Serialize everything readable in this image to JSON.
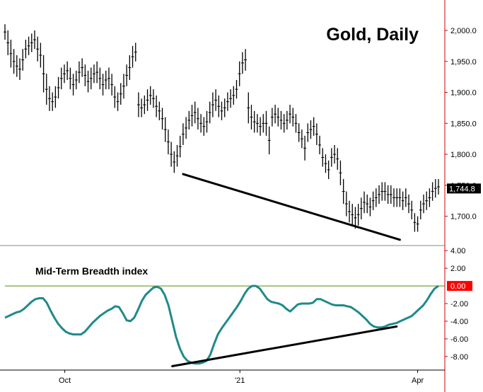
{
  "colors": {
    "background": "#ffffff",
    "bars": "#000000",
    "axis": "#cc0000",
    "breadth_line": "#1f8a8a",
    "zero_line": "#5a8a00",
    "trendline": "#000000",
    "price_tag_bg": "#000000",
    "zero_tag_bg": "#ff0000",
    "tick_text": "#000000"
  },
  "chart_data": [
    {
      "type": "ohlc",
      "title": "Gold, Daily",
      "ylim": [
        1655,
        2040
      ],
      "y_ticks": [
        "2,000.0",
        "1,950.0",
        "1,900.0",
        "1,850.0",
        "1,800.0",
        "1,750.0",
        "1,700.0"
      ],
      "y_tick_values": [
        2000,
        1950,
        1900,
        1850,
        1800,
        1750,
        1700
      ],
      "last_value": 1744.8,
      "last_value_label": "1,744.8",
      "bars": [
        [
          2010,
          1985
        ],
        [
          2000,
          1960
        ],
        [
          1985,
          1940
        ],
        [
          1970,
          1930
        ],
        [
          1960,
          1925
        ],
        [
          1955,
          1920
        ],
        [
          1970,
          1935
        ],
        [
          1985,
          1955
        ],
        [
          1990,
          1960
        ],
        [
          1995,
          1965
        ],
        [
          2000,
          1970
        ],
        [
          1990,
          1950
        ],
        [
          1980,
          1940
        ],
        [
          1960,
          1900
        ],
        [
          1930,
          1880
        ],
        [
          1910,
          1870
        ],
        [
          1900,
          1870
        ],
        [
          1910,
          1875
        ],
        [
          1925,
          1890
        ],
        [
          1940,
          1905
        ],
        [
          1945,
          1915
        ],
        [
          1950,
          1920
        ],
        [
          1940,
          1905
        ],
        [
          1930,
          1895
        ],
        [
          1935,
          1905
        ],
        [
          1950,
          1915
        ],
        [
          1955,
          1925
        ],
        [
          1945,
          1910
        ],
        [
          1935,
          1900
        ],
        [
          1940,
          1905
        ],
        [
          1945,
          1915
        ],
        [
          1950,
          1915
        ],
        [
          1940,
          1905
        ],
        [
          1930,
          1895
        ],
        [
          1935,
          1905
        ],
        [
          1940,
          1905
        ],
        [
          1930,
          1895
        ],
        [
          1910,
          1875
        ],
        [
          1900,
          1870
        ],
        [
          1915,
          1880
        ],
        [
          1930,
          1890
        ],
        [
          1945,
          1910
        ],
        [
          1960,
          1920
        ],
        [
          1975,
          1940
        ],
        [
          1980,
          1950
        ],
        [
          1900,
          1860
        ],
        [
          1890,
          1860
        ],
        [
          1895,
          1865
        ],
        [
          1905,
          1870
        ],
        [
          1910,
          1880
        ],
        [
          1905,
          1875
        ],
        [
          1895,
          1860
        ],
        [
          1885,
          1855
        ],
        [
          1875,
          1840
        ],
        [
          1860,
          1820
        ],
        [
          1840,
          1800
        ],
        [
          1820,
          1780
        ],
        [
          1805,
          1770
        ],
        [
          1815,
          1780
        ],
        [
          1830,
          1795
        ],
        [
          1850,
          1815
        ],
        [
          1860,
          1825
        ],
        [
          1870,
          1840
        ],
        [
          1880,
          1845
        ],
        [
          1885,
          1850
        ],
        [
          1875,
          1840
        ],
        [
          1865,
          1835
        ],
        [
          1860,
          1830
        ],
        [
          1870,
          1835
        ],
        [
          1885,
          1850
        ],
        [
          1900,
          1860
        ],
        [
          1905,
          1870
        ],
        [
          1895,
          1860
        ],
        [
          1885,
          1855
        ],
        [
          1890,
          1860
        ],
        [
          1900,
          1870
        ],
        [
          1905,
          1875
        ],
        [
          1910,
          1880
        ],
        [
          1920,
          1890
        ],
        [
          1950,
          1910
        ],
        [
          1965,
          1930
        ],
        [
          1970,
          1935
        ],
        [
          1900,
          1850
        ],
        [
          1880,
          1840
        ],
        [
          1870,
          1835
        ],
        [
          1865,
          1835
        ],
        [
          1860,
          1830
        ],
        [
          1865,
          1835
        ],
        [
          1870,
          1830
        ],
        [
          1845,
          1800
        ],
        [
          1875,
          1845
        ],
        [
          1880,
          1850
        ],
        [
          1875,
          1845
        ],
        [
          1870,
          1840
        ],
        [
          1865,
          1835
        ],
        [
          1870,
          1840
        ],
        [
          1880,
          1850
        ],
        [
          1875,
          1845
        ],
        [
          1865,
          1835
        ],
        [
          1850,
          1820
        ],
        [
          1840,
          1810
        ],
        [
          1830,
          1790
        ],
        [
          1850,
          1820
        ],
        [
          1855,
          1825
        ],
        [
          1860,
          1830
        ],
        [
          1850,
          1815
        ],
        [
          1830,
          1800
        ],
        [
          1810,
          1780
        ],
        [
          1800,
          1770
        ],
        [
          1790,
          1760
        ],
        [
          1810,
          1780
        ],
        [
          1815,
          1785
        ],
        [
          1810,
          1775
        ],
        [
          1790,
          1750
        ],
        [
          1760,
          1720
        ],
        [
          1740,
          1700
        ],
        [
          1725,
          1690
        ],
        [
          1720,
          1685
        ],
        [
          1715,
          1680
        ],
        [
          1720,
          1685
        ],
        [
          1730,
          1695
        ],
        [
          1740,
          1705
        ],
        [
          1735,
          1705
        ],
        [
          1730,
          1700
        ],
        [
          1740,
          1710
        ],
        [
          1745,
          1715
        ],
        [
          1750,
          1720
        ],
        [
          1755,
          1725
        ],
        [
          1755,
          1725
        ],
        [
          1750,
          1720
        ],
        [
          1750,
          1720
        ],
        [
          1745,
          1715
        ],
        [
          1745,
          1715
        ],
        [
          1745,
          1715
        ],
        [
          1740,
          1710
        ],
        [
          1745,
          1715
        ],
        [
          1735,
          1705
        ],
        [
          1725,
          1695
        ],
        [
          1705,
          1675
        ],
        [
          1700,
          1675
        ],
        [
          1725,
          1695
        ],
        [
          1735,
          1705
        ],
        [
          1740,
          1710
        ],
        [
          1745,
          1715
        ],
        [
          1755,
          1725
        ],
        [
          1760,
          1730
        ],
        [
          1760,
          1735
        ]
      ]
    },
    {
      "type": "line",
      "series": [
        {
          "name": "Mid-Term Breadth index",
          "values": [
            -3.6,
            -3.4,
            -3.2,
            -3.0,
            -2.9,
            -2.6,
            -2.2,
            -1.8,
            -1.5,
            -1.4,
            -1.4,
            -1.9,
            -2.8,
            -3.6,
            -4.3,
            -4.8,
            -5.2,
            -5.4,
            -5.5,
            -5.5,
            -5.5,
            -5.2,
            -4.7,
            -4.2,
            -3.8,
            -3.4,
            -3.1,
            -2.8,
            -2.6,
            -2.3,
            -2.4,
            -3.1,
            -3.9,
            -4.0,
            -3.6,
            -2.7,
            -1.7,
            -1.0,
            -0.6,
            -0.2,
            -0.1,
            -0.3,
            -1.0,
            -2.2,
            -4.0,
            -5.8,
            -7.1,
            -8.0,
            -8.5,
            -8.7,
            -8.8,
            -8.8,
            -8.7,
            -8.5,
            -7.8,
            -6.6,
            -5.5,
            -4.8,
            -4.2,
            -3.6,
            -3.0,
            -2.4,
            -1.7,
            -0.9,
            -0.3,
            0.0,
            0.0,
            -0.3,
            -0.9,
            -1.5,
            -1.8,
            -1.9,
            -2.0,
            -2.2,
            -2.6,
            -2.9,
            -2.5,
            -2.1,
            -2.0,
            -2.0,
            -2.0,
            -1.9,
            -1.5,
            -1.5,
            -1.7,
            -1.9,
            -2.1,
            -2.2,
            -2.2,
            -2.2,
            -2.3,
            -2.4,
            -2.7,
            -3.0,
            -3.4,
            -3.8,
            -4.3,
            -4.6,
            -4.7,
            -4.7,
            -4.6,
            -4.4,
            -4.3,
            -4.2,
            -4.0,
            -3.8,
            -3.6,
            -3.4,
            -3.0,
            -2.6,
            -2.2,
            -1.6,
            -0.9,
            -0.3,
            0.0
          ]
        }
      ],
      "ylim": [
        -9.3,
        4.5
      ],
      "y_ticks": [
        "4.00",
        "2.00",
        "-2.00",
        "-4.00",
        "-6.00",
        "-8.00"
      ],
      "y_tick_values": [
        4,
        2,
        -2,
        -4,
        -6,
        -8
      ],
      "zero_label": "0.00",
      "reference_value": 0.0,
      "title": "Mid-Term Breadth index"
    }
  ],
  "x_axis": {
    "labels": [
      "Oct",
      "'21",
      "Apr"
    ],
    "label_fractions": [
      0.138,
      0.542,
      0.952
    ]
  }
}
